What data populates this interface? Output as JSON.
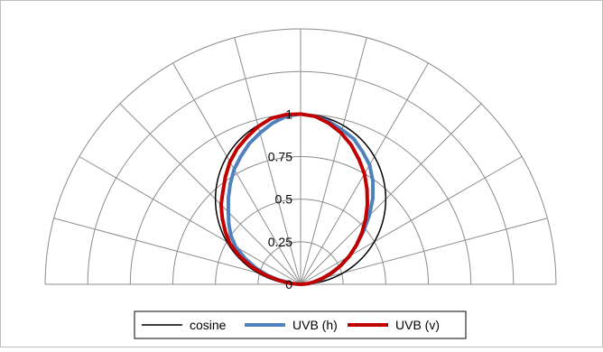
{
  "chart_data": {
    "type": "polar",
    "title": "",
    "radial_ticks": [
      "0",
      "0.25",
      "0.5",
      "0.75",
      "1"
    ],
    "radial_values": [
      0,
      0.25,
      0.5,
      0.75,
      1
    ],
    "radial_range": [
      0,
      1
    ],
    "angle_range_deg": [
      -90,
      90
    ],
    "angle_step_deg": 15,
    "grid": true,
    "legend_position": "bottom",
    "series": [
      {
        "name": "cosine",
        "color": "#000000",
        "shape": "cosine",
        "values": []
      },
      {
        "name": "UVB (h)",
        "color": "#4f81bd",
        "angles": [
          -90,
          -85,
          -80,
          -75,
          -70,
          -65,
          -60,
          -55,
          -50,
          -45,
          -40,
          -35,
          -30,
          -25,
          -20,
          -15,
          -10,
          -5,
          0,
          5,
          10,
          15,
          20,
          25,
          30,
          35,
          40,
          45,
          50,
          55,
          60,
          65,
          70,
          75,
          80,
          85,
          90
        ],
        "values": [
          0.0,
          0.05,
          0.12,
          0.2,
          0.28,
          0.36,
          0.44,
          0.5,
          0.55,
          0.6,
          0.66,
          0.72,
          0.78,
          0.83,
          0.88,
          0.92,
          0.96,
          0.99,
          1.0,
          0.99,
          0.97,
          0.94,
          0.91,
          0.86,
          0.81,
          0.74,
          0.66,
          0.57,
          0.48,
          0.4,
          0.33,
          0.26,
          0.2,
          0.14,
          0.09,
          0.05,
          0.0
        ]
      },
      {
        "name": "UVB (v)",
        "color": "#c00000",
        "angles": [
          -90,
          -85,
          -80,
          -75,
          -70,
          -65,
          -60,
          -55,
          -50,
          -45,
          -40,
          -35,
          -30,
          -25,
          -20,
          -15,
          -10,
          -5,
          0,
          5,
          10,
          15,
          20,
          25,
          30,
          35,
          40,
          45,
          50,
          55,
          60,
          65,
          70,
          75,
          80,
          85,
          90
        ],
        "values": [
          0.0,
          0.06,
          0.13,
          0.22,
          0.31,
          0.4,
          0.48,
          0.54,
          0.6,
          0.66,
          0.71,
          0.77,
          0.83,
          0.88,
          0.92,
          0.96,
          0.99,
          1.0,
          1.0,
          0.99,
          0.96,
          0.92,
          0.87,
          0.81,
          0.75,
          0.68,
          0.61,
          0.54,
          0.47,
          0.4,
          0.33,
          0.26,
          0.19,
          0.13,
          0.08,
          0.04,
          0.0
        ]
      }
    ]
  }
}
